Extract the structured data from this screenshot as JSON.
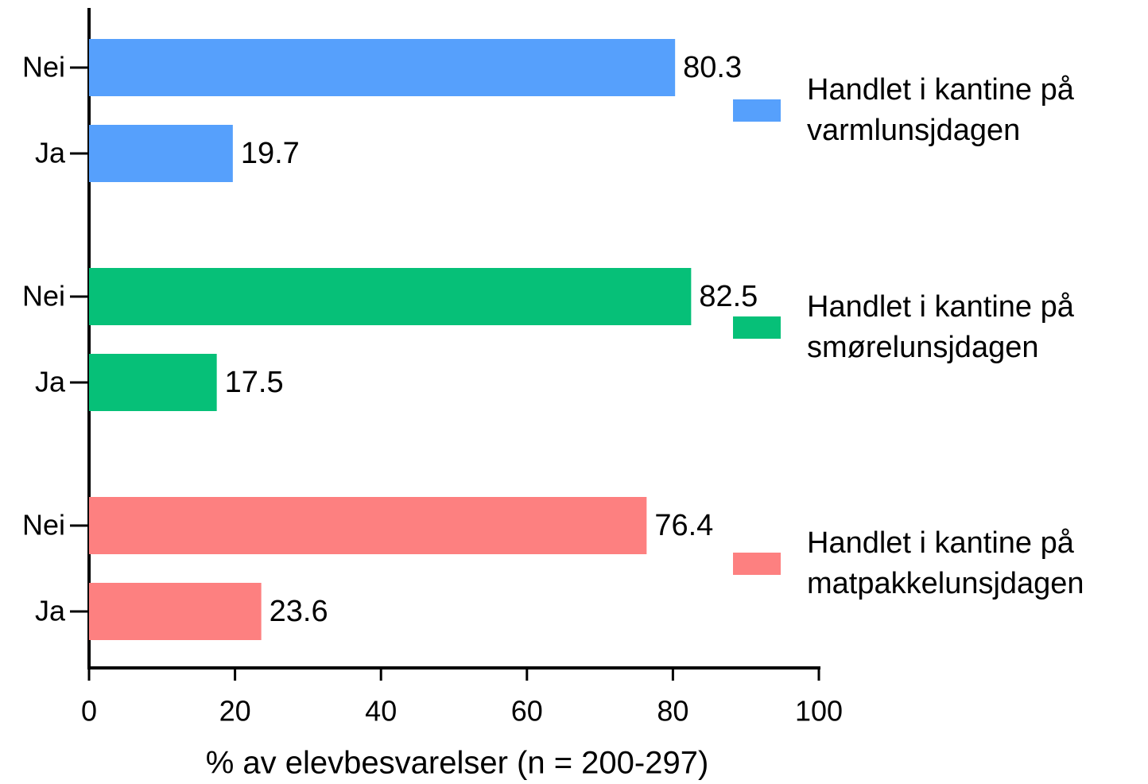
{
  "chart_data": {
    "type": "barh",
    "categories": [
      "Nei",
      "Ja"
    ],
    "series": [
      {
        "name": "Handlet i kantine på varmlunsjdagen",
        "color": "#56a0fc",
        "values": [
          80.3,
          19.7
        ]
      },
      {
        "name": "Handlet i kantine på smørelunsjdagen",
        "color": "#06c078",
        "values": [
          82.5,
          17.5
        ]
      },
      {
        "name": "Handlet i kantine på matpakkelunsjdagen",
        "color": "#fd8080",
        "values": [
          76.4,
          23.6
        ]
      }
    ],
    "x_label": "% av elevbesvarelser (n = 200-297)",
    "xlim": [
      0,
      100
    ],
    "xticks": [
      0,
      20,
      40,
      60,
      80,
      100
    ],
    "legend": "right"
  }
}
